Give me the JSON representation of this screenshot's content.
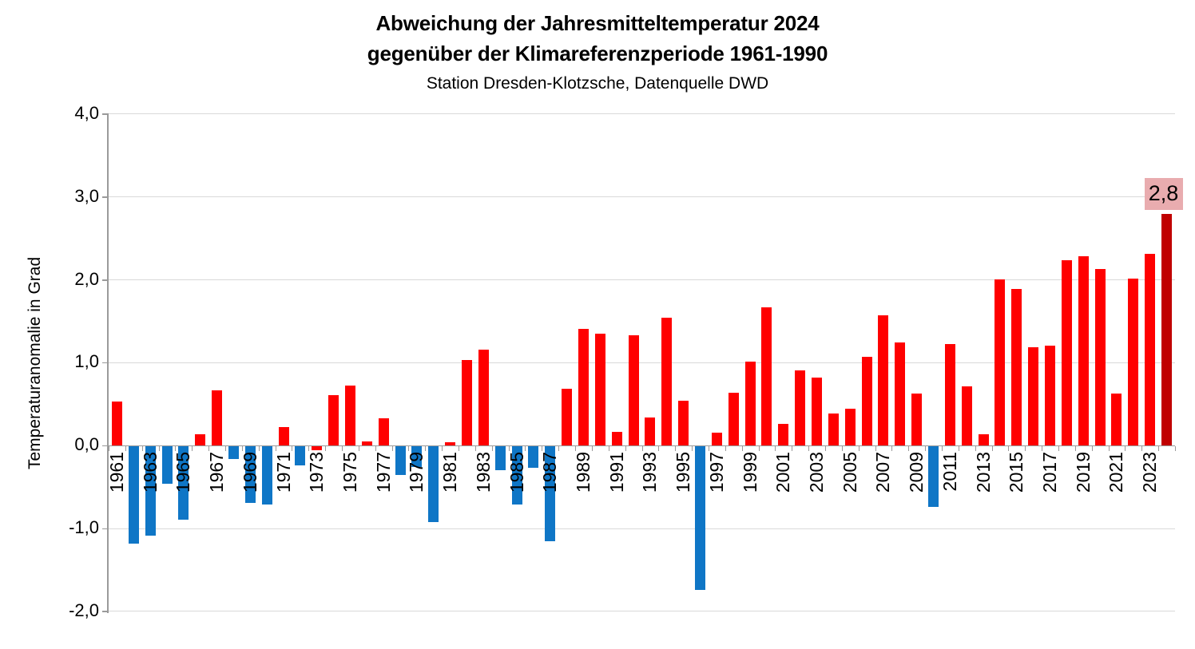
{
  "title": {
    "line1": "Abweichung der Jahresmitteltemperatur 2024",
    "line2": "gegenüber der Klimareferenzperiode 1961-1990",
    "subtitle": "Station Dresden-Klotzsche, Datenquelle DWD"
  },
  "annotation": {
    "text": "2,8",
    "year": "2024"
  },
  "colors": {
    "red": "#FF0000",
    "blue": "#0F76C6",
    "darkred": "#C00000",
    "annotation_bg": "#E9ACAF",
    "gridline": "#D9D9D9",
    "axis": "#9A9A9A"
  },
  "chart_data": {
    "type": "bar",
    "title": "Abweichung der Jahresmitteltemperatur 2024 gegenüber der Klimareferenzperiode 1961-1990",
    "subtitle": "Station Dresden-Klotzsche, Datenquelle DWD",
    "xlabel": "",
    "ylabel": "Temperaturanomalie in Grad",
    "ylim": [
      -2.0,
      4.0
    ],
    "ytick_step": 1.0,
    "ytick_values": [
      4.0,
      3.0,
      2.0,
      1.0,
      0.0,
      -1.0,
      -2.0
    ],
    "ytick_labels": [
      "4,0",
      "3,0",
      "2,0",
      "1,0",
      "0,0",
      "-1,0",
      "-2,0"
    ],
    "grid": true,
    "legend": false,
    "categories": [
      1961,
      1962,
      1963,
      1964,
      1965,
      1966,
      1967,
      1968,
      1969,
      1970,
      1971,
      1972,
      1973,
      1974,
      1975,
      1976,
      1977,
      1978,
      1979,
      1980,
      1981,
      1982,
      1983,
      1984,
      1985,
      1986,
      1987,
      1988,
      1989,
      1990,
      1991,
      1992,
      1993,
      1994,
      1995,
      1996,
      1997,
      1998,
      1999,
      2000,
      2001,
      2002,
      2003,
      2004,
      2005,
      2006,
      2007,
      2008,
      2009,
      2010,
      2011,
      2012,
      2013,
      2014,
      2015,
      2016,
      2017,
      2018,
      2019,
      2020,
      2021,
      2022,
      2023,
      2024
    ],
    "values": [
      0.53,
      -1.17,
      -1.08,
      -0.45,
      -0.89,
      0.14,
      0.67,
      -0.15,
      -0.68,
      -0.7,
      0.22,
      -0.23,
      -0.05,
      0.61,
      0.73,
      0.05,
      0.33,
      -0.35,
      -0.25,
      -0.91,
      0.04,
      1.03,
      1.16,
      -0.29,
      -0.7,
      -0.26,
      -1.15,
      0.69,
      1.41,
      1.35,
      0.17,
      1.33,
      0.34,
      1.54,
      0.54,
      -1.73,
      0.16,
      0.64,
      1.01,
      1.67,
      0.26,
      0.91,
      0.82,
      0.39,
      0.45,
      1.07,
      1.57,
      1.25,
      0.63,
      -0.73,
      1.23,
      0.72,
      0.14,
      2.01,
      1.89,
      1.19,
      1.21,
      2.24,
      2.29,
      2.13,
      0.63,
      2.02,
      2.31,
      2.8
    ],
    "bar_colors": [
      "red",
      "blue",
      "blue",
      "blue",
      "blue",
      "red",
      "red",
      "blue",
      "blue",
      "blue",
      "red",
      "blue",
      "red",
      "red",
      "red",
      "red",
      "red",
      "blue",
      "blue",
      "blue",
      "red",
      "red",
      "red",
      "blue",
      "blue",
      "blue",
      "blue",
      "red",
      "red",
      "red",
      "red",
      "red",
      "red",
      "red",
      "red",
      "blue",
      "red",
      "red",
      "red",
      "red",
      "red",
      "red",
      "red",
      "red",
      "red",
      "red",
      "red",
      "red",
      "red",
      "blue",
      "red",
      "red",
      "red",
      "red",
      "red",
      "red",
      "red",
      "red",
      "red",
      "red",
      "red",
      "red",
      "red",
      "darkred"
    ],
    "x_tick_labels": [
      "1961",
      "1963",
      "1965",
      "1967",
      "1969",
      "1971",
      "1973",
      "1975",
      "1977",
      "1979",
      "1981",
      "1983",
      "1985",
      "1987",
      "1989",
      "1991",
      "1993",
      "1995",
      "1997",
      "1999",
      "2001",
      "2003",
      "2005",
      "2007",
      "2009",
      "2011",
      "2013",
      "2015",
      "2017",
      "2019",
      "2021",
      "2023"
    ],
    "data_label": {
      "year": 2024,
      "text": "2,8"
    }
  }
}
